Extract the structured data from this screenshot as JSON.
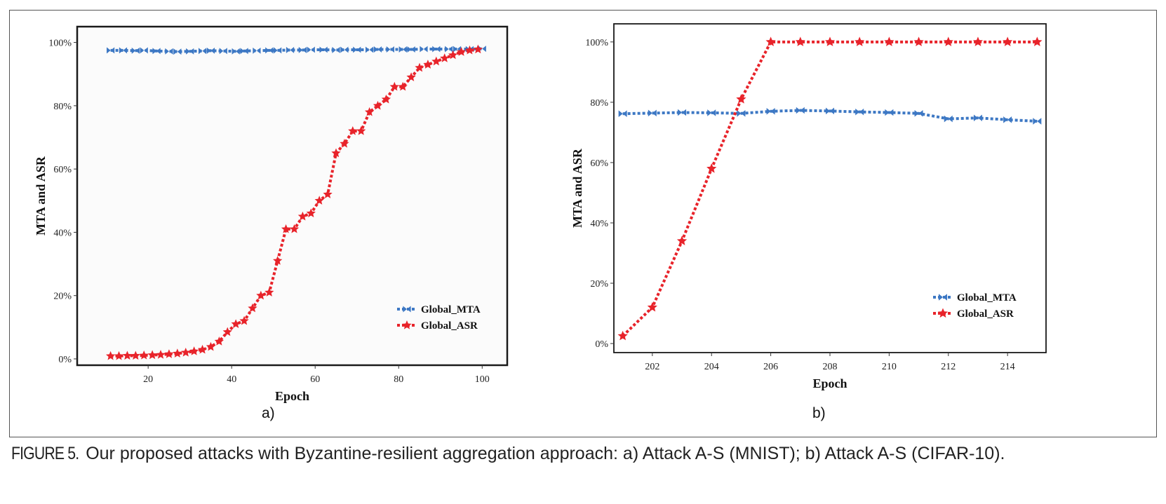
{
  "chart_data": [
    {
      "type": "line",
      "panel_label": "a)",
      "xlabel": "Epoch",
      "ylabel": "MTA and ASR",
      "xlim": [
        3,
        106
      ],
      "ylim": [
        -2,
        105
      ],
      "xticks": [
        20,
        40,
        60,
        80,
        100
      ],
      "yticks": [
        0,
        20,
        40,
        60,
        80,
        100
      ],
      "ytick_labels": [
        "0%",
        "20%",
        "40%",
        "60%",
        "80%",
        "100%"
      ],
      "legend_position": "bottom-right",
      "background": "#fbfbfb",
      "series": [
        {
          "name": "Global_MTA",
          "color": "#3d78c4",
          "marker": "bowtie",
          "x": [
            11,
            14,
            17,
            19,
            22,
            25,
            27,
            30,
            33,
            35,
            38,
            41,
            43,
            46,
            49,
            51,
            54,
            57,
            59,
            62,
            65,
            67,
            70,
            73,
            75,
            78,
            81,
            83,
            86,
            89,
            92,
            94,
            97,
            100
          ],
          "y": [
            97.5,
            97.5,
            97.4,
            97.5,
            97.3,
            97.2,
            97.1,
            97.2,
            97.3,
            97.4,
            97.3,
            97.2,
            97.3,
            97.4,
            97.5,
            97.5,
            97.6,
            97.6,
            97.7,
            97.7,
            97.6,
            97.7,
            97.7,
            97.7,
            97.8,
            97.8,
            97.8,
            97.8,
            97.9,
            97.9,
            97.9,
            97.9,
            97.9,
            98.0
          ]
        },
        {
          "name": "Global_ASR",
          "color": "#e8232a",
          "marker": "star",
          "x": [
            11,
            13,
            15,
            17,
            19,
            21,
            23,
            25,
            27,
            29,
            31,
            33,
            35,
            37,
            39,
            41,
            43,
            45,
            47,
            49,
            51,
            53,
            55,
            57,
            59,
            61,
            63,
            65,
            67,
            69,
            71,
            73,
            75,
            77,
            79,
            81,
            83,
            85,
            87,
            89,
            91,
            93,
            95,
            97,
            99
          ],
          "y": [
            0.9,
            0.9,
            1.0,
            1.0,
            1.1,
            1.2,
            1.3,
            1.5,
            1.7,
            2.0,
            2.4,
            2.9,
            3.8,
            5.5,
            8.5,
            11,
            12,
            16,
            20,
            21,
            31,
            41,
            41,
            45,
            46,
            50,
            52,
            65,
            68,
            72,
            72,
            78,
            80,
            82,
            86,
            86,
            89,
            92,
            93,
            94,
            95,
            96,
            97,
            97.5,
            97.8
          ]
        }
      ]
    },
    {
      "type": "line",
      "panel_label": "b)",
      "xlabel": "Epoch",
      "ylabel": "MTA and ASR",
      "xlim": [
        200.7,
        215.3
      ],
      "ylim": [
        -3,
        106
      ],
      "xticks": [
        202,
        204,
        206,
        208,
        210,
        212,
        214
      ],
      "yticks": [
        0,
        20,
        40,
        60,
        80,
        100
      ],
      "ytick_labels": [
        "0%",
        "20%",
        "40%",
        "60%",
        "80%",
        "100%"
      ],
      "legend_position": "bottom-right",
      "background": "#ffffff",
      "series": [
        {
          "name": "Global_MTA",
          "color": "#3d78c4",
          "marker": "bowtie",
          "x": [
            201,
            202,
            203,
            204,
            205,
            206,
            207,
            208,
            209,
            210,
            211,
            212,
            213,
            214,
            215
          ],
          "y": [
            76.2,
            76.4,
            76.6,
            76.5,
            76.3,
            77.0,
            77.3,
            77.1,
            76.8,
            76.6,
            76.3,
            74.5,
            74.8,
            74.2,
            73.7
          ]
        },
        {
          "name": "Global_ASR",
          "color": "#e8232a",
          "marker": "star",
          "x": [
            201,
            202,
            203,
            204,
            205,
            206,
            207,
            208,
            209,
            210,
            211,
            212,
            213,
            214,
            215
          ],
          "y": [
            2.5,
            12,
            34,
            58,
            81,
            100,
            100,
            100,
            100,
            100,
            100,
            100,
            100,
            100,
            100
          ]
        }
      ]
    }
  ],
  "caption": {
    "figure_label": "FIGURE 5.",
    "text": "Our proposed attacks with Byzantine-resilient aggregation approach: a) Attack A-S (MNIST); b) Attack A-S (CIFAR-10)."
  }
}
